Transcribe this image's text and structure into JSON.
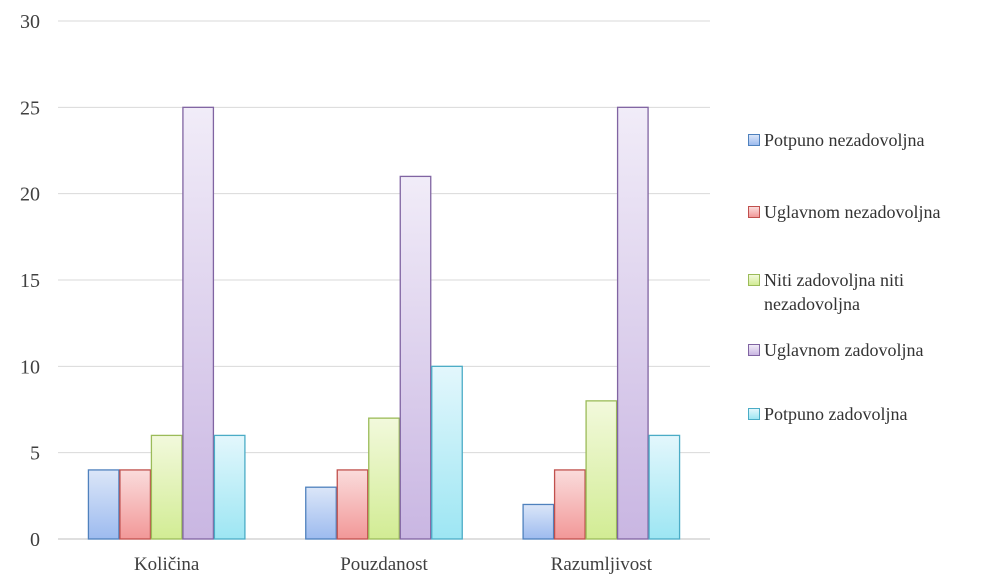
{
  "chart_data": {
    "type": "bar",
    "categories": [
      "Količina",
      "Pouzdanost",
      "Razumljivost"
    ],
    "series": [
      {
        "name": "Potpuno nezadovoljna",
        "values": [
          4,
          3,
          2
        ],
        "color": "#4f81bd",
        "fill_top": "#dbe6f8",
        "fill_bottom": "#9dbbef"
      },
      {
        "name": "Uglavnom nezadovoljna",
        "values": [
          4,
          4,
          4
        ],
        "color": "#c0504d",
        "fill_top": "#fadcdc",
        "fill_bottom": "#f29898"
      },
      {
        "name": "Niti zadovoljna niti nezadovoljna",
        "values": [
          6,
          7,
          8
        ],
        "color": "#9bbb59",
        "fill_top": "#f2f9dc",
        "fill_bottom": "#d2ec94"
      },
      {
        "name": "Uglavnom zadovoljna",
        "values": [
          25,
          21,
          25
        ],
        "color": "#8064a2",
        "fill_top": "#f1ecf8",
        "fill_bottom": "#c9b6e2"
      },
      {
        "name": "Potpuno zadovoljna",
        "values": [
          6,
          10,
          6
        ],
        "color": "#4bacc6",
        "fill_top": "#e3f7fc",
        "fill_bottom": "#9de6f3"
      }
    ],
    "y_ticks": [
      "0",
      "5",
      "10",
      "15",
      "20",
      "25",
      "30"
    ],
    "ylim": [
      0,
      30
    ],
    "grid": true,
    "legend_position": "right"
  }
}
